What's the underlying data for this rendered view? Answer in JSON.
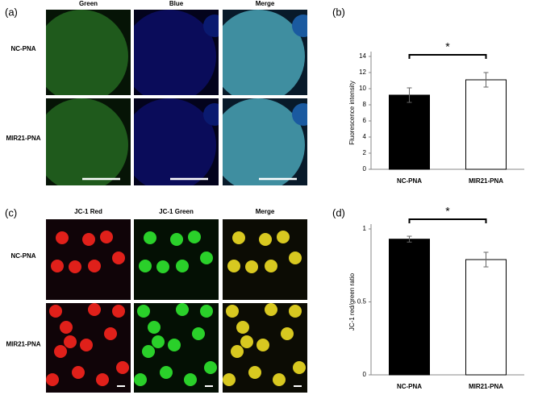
{
  "panel_labels": [
    "(a)",
    "(b)",
    "(c)",
    "(d)"
  ],
  "figure_a": {
    "columns": [
      "Green",
      "Blue",
      "Merge"
    ],
    "rows": [
      "NC-PNA",
      "MIR21-PNA"
    ]
  },
  "figure_c": {
    "columns": [
      "JC-1 Red",
      "JC-1 Green",
      "Merge"
    ],
    "rows": [
      "NC-PNA",
      "MIR21-PNA"
    ]
  },
  "chart_data": [
    {
      "type": "bar",
      "y_label": "Fluorescence intensity",
      "categories": [
        "NC-PNA",
        "MIR21-PNA"
      ],
      "series": [
        {
          "values": [
            9.2,
            11.1
          ],
          "errors": [
            0.9,
            0.9
          ],
          "colors": [
            "#000000",
            "#ffffff"
          ]
        }
      ],
      "ylim": [
        0,
        14
      ],
      "yticks": [
        0,
        2,
        4,
        6,
        8,
        10,
        12,
        14
      ],
      "annotation": "*"
    },
    {
      "type": "bar",
      "y_label": "JC-1 red/green ratio",
      "categories": [
        "NC-PNA",
        "MIR21-PNA"
      ],
      "series": [
        {
          "values": [
            0.93,
            0.79
          ],
          "errors": [
            0.02,
            0.05
          ],
          "colors": [
            "#000000",
            "#ffffff"
          ]
        }
      ],
      "ylim": [
        0,
        1
      ],
      "yticks": [
        0,
        0.5,
        1
      ],
      "annotation": "*"
    }
  ]
}
